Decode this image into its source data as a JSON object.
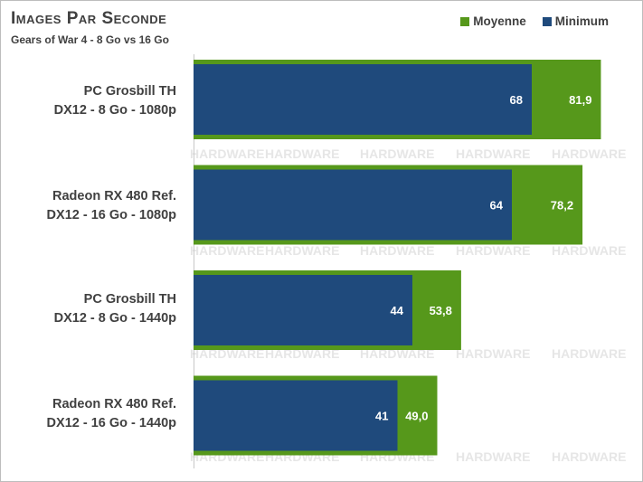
{
  "chart_data": {
    "type": "bar",
    "orientation": "horizontal",
    "title": "Images Par Seconde",
    "subtitle": "Gears of War 4 - 8 Go vs 16 Go",
    "categories": [
      [
        "PC Grosbill TH",
        "DX12 - 8 Go - 1080p"
      ],
      [
        "Radeon RX 480 Ref.",
        "DX12 - 16 Go - 1080p"
      ],
      [
        "PC Grosbill TH",
        "DX12 - 8 Go - 1440p"
      ],
      [
        "Radeon RX 480 Ref.",
        "DX12 - 16 Go - 1440p"
      ]
    ],
    "series": [
      {
        "name": "Moyenne",
        "color": "#56981b",
        "values": [
          81.9,
          78.2,
          53.8,
          49.0
        ],
        "labels": [
          "81,9",
          "78,2",
          "53,8",
          "49,0"
        ]
      },
      {
        "name": "Minimum",
        "color": "#1f4a7c",
        "values": [
          68,
          64,
          44,
          41
        ],
        "labels": [
          "68",
          "64",
          "44",
          "41"
        ]
      }
    ],
    "xlim": [
      0,
      92
    ],
    "grid": false,
    "legend_position": "top-right",
    "watermark": "HARDWARE"
  }
}
